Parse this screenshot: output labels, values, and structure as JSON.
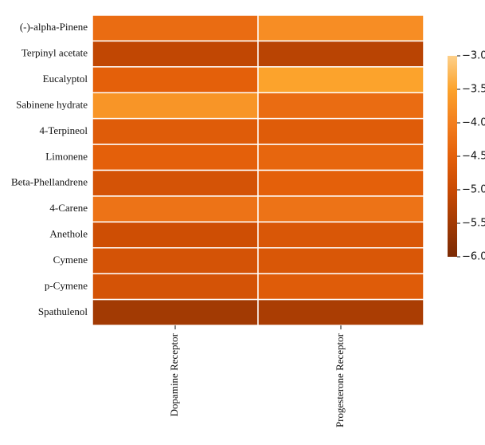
{
  "chart_data": {
    "type": "heatmap",
    "rows": [
      "(-)-alpha-Pinene",
      "Terpinyl acetate",
      "Eucalyptol",
      "Sabinene hydrate",
      "4-Terpineol",
      "Limonene",
      "Beta-Phellandrene",
      "4-Carene",
      "Anethole",
      "Cymene",
      "p-Cymene",
      "Spathulenol"
    ],
    "columns": [
      "Dopamine Receptor",
      "Progesterone Receptor"
    ],
    "values": [
      [
        -4.3,
        -3.8
      ],
      [
        -5.1,
        -5.2
      ],
      [
        -4.5,
        -3.5
      ],
      [
        -3.7,
        -4.3
      ],
      [
        -4.6,
        -4.6
      ],
      [
        -4.5,
        -4.4
      ],
      [
        -4.8,
        -4.5
      ],
      [
        -4.2,
        -4.2
      ],
      [
        -4.9,
        -4.7
      ],
      [
        -4.8,
        -4.7
      ],
      [
        -4.8,
        -4.6
      ],
      [
        -5.5,
        -5.4
      ]
    ],
    "colorscale": [
      "#7b2a04",
      "#a23a03",
      "#c94a03",
      "#e4600a",
      "#f37f1f",
      "#fca32c",
      "#fdd08a"
    ],
    "vlim": [
      -6,
      -3
    ],
    "cticks": [
      {
        "value": -3,
        "label": "−3.0"
      },
      {
        "value": -3.5,
        "label": "−3.5"
      },
      {
        "value": -4,
        "label": "−4.0"
      },
      {
        "value": -4.5,
        "label": "−4.5"
      },
      {
        "value": -5,
        "label": "−5.0"
      },
      {
        "value": -5.5,
        "label": "−5.5"
      },
      {
        "value": -6,
        "label": "−6.0"
      }
    ]
  }
}
